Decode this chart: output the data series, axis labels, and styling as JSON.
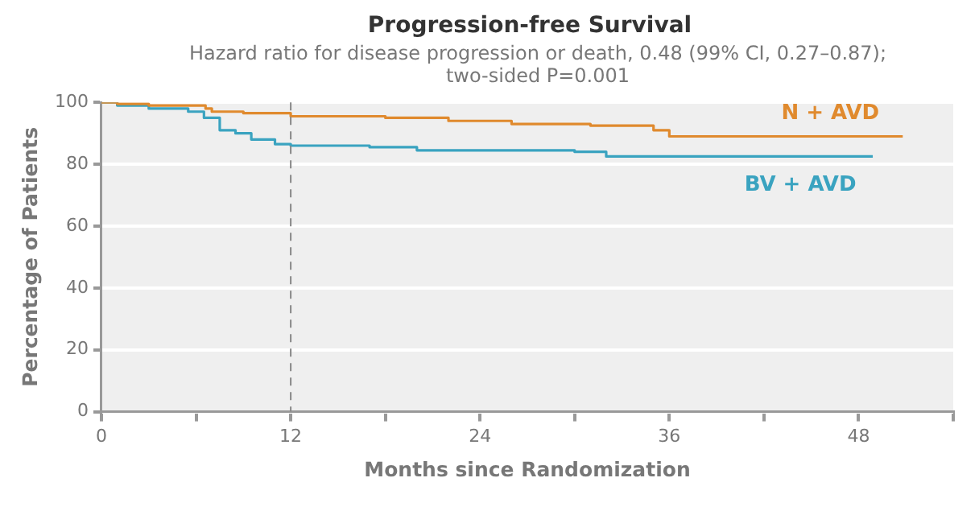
{
  "chart_data": {
    "type": "step",
    "title": "Progression-free Survival",
    "subtitle": "Hazard ratio for disease progression or death, 0.48 (99% CI, 0.27–0.87); two-sided P=0.001",
    "xlabel": "Months since Randomization",
    "ylabel": "Percentage of Patients",
    "xlim": [
      0,
      54
    ],
    "xticks": [
      0,
      {
        "value": 6,
        "label": null
      },
      12,
      {
        "value": 18,
        "label": null
      },
      24,
      {
        "value": 30,
        "label": null
      },
      36,
      {
        "value": 42,
        "label": null
      },
      48,
      {
        "value": 54,
        "label": null
      }
    ],
    "ylim": [
      0,
      100
    ],
    "yticks": [
      0,
      20,
      40,
      60,
      80,
      100
    ],
    "grid": "y",
    "legend": false,
    "marker": "none",
    "line_style": "solid",
    "ref_lines": [
      {
        "axis": "x",
        "value": 12,
        "color": "#888888",
        "line_style": "dashed"
      }
    ],
    "series": [
      {
        "name": "N + AVD",
        "color": "#e08a2e",
        "x": [
          0,
          1,
          3,
          6.6,
          7,
          9,
          12,
          18,
          22,
          26,
          31,
          35,
          36,
          50.8
        ],
        "values": [
          100,
          99.5,
          99,
          98,
          97,
          96.5,
          95.5,
          95,
          94,
          93,
          92.5,
          91,
          89,
          89
        ]
      },
      {
        "name": "BV + AVD",
        "color": "#3aa3c0",
        "x": [
          0,
          1,
          3,
          5.5,
          6.5,
          7.5,
          8.5,
          9.5,
          11,
          12,
          17,
          20,
          30,
          32,
          48.9
        ],
        "values": [
          100,
          99,
          98,
          97,
          95,
          91,
          90,
          88,
          86.5,
          86,
          85.5,
          84.5,
          84,
          82.5,
          82.5
        ]
      }
    ]
  }
}
